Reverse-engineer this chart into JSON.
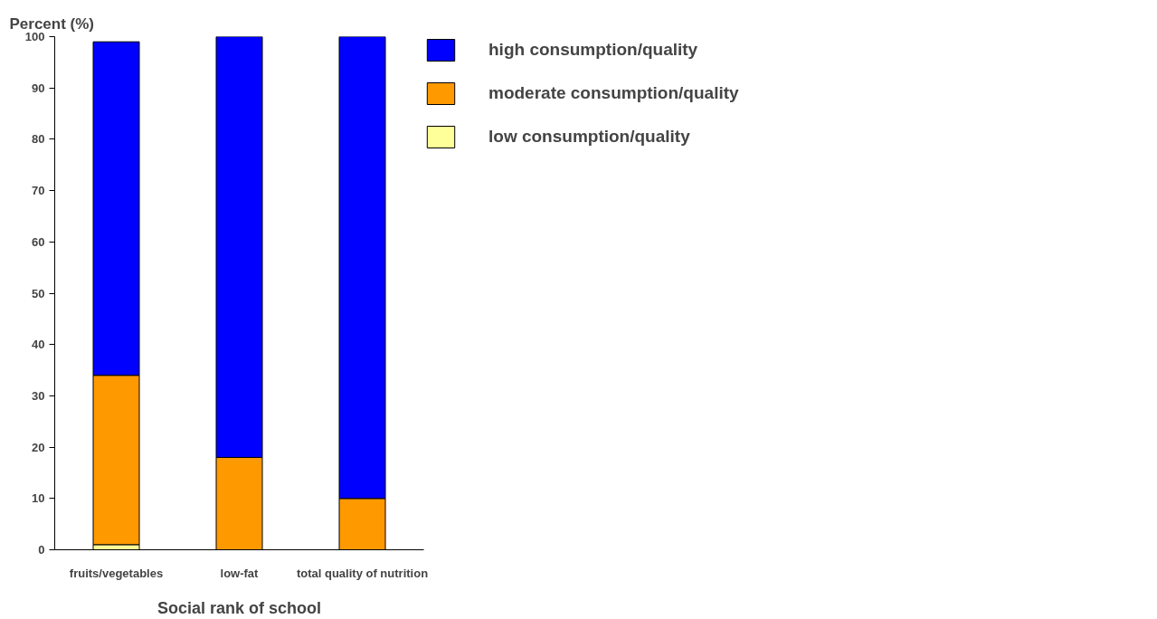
{
  "chart_data": {
    "type": "bar",
    "stacked": true,
    "ylabel": "Percent (%)",
    "xlabel": "Social rank of school",
    "categories": [
      "fruits/vegetables",
      "low-fat",
      "total quality of nutrition"
    ],
    "series": [
      {
        "name": "low consumption/quality",
        "color": "#ffff99",
        "values": [
          1,
          0,
          0
        ]
      },
      {
        "name": "moderate consumption/quality",
        "color": "#ff9900",
        "values": [
          33,
          18,
          10
        ]
      },
      {
        "name": "high consumption/quality",
        "color": "#0000ff",
        "values": [
          65,
          82,
          90
        ]
      }
    ],
    "ylim": [
      0,
      100
    ],
    "yticks": [
      0,
      10,
      20,
      30,
      40,
      50,
      60,
      70,
      80,
      90,
      100
    ],
    "grid": false,
    "legend": "right"
  }
}
